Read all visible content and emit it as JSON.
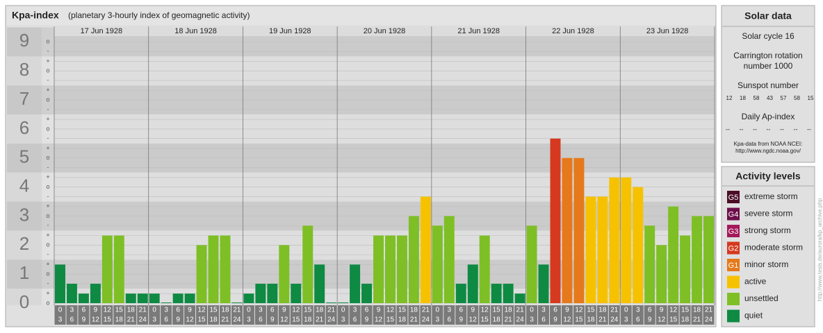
{
  "chart_data": {
    "type": "bar",
    "title": "Kpa-index",
    "subtitle": "(planetary 3-hourly index of geomagnetic activity)",
    "days": [
      "17 Jun 1928",
      "18 Jun 1928",
      "19 Jun 1928",
      "20 Jun 1928",
      "21 Jun 1928",
      "22 Jun 1928",
      "23 Jun 1928"
    ],
    "slot_starts": [
      0,
      3,
      6,
      9,
      12,
      15,
      18,
      21
    ],
    "slot_ends": [
      3,
      6,
      9,
      12,
      15,
      18,
      21,
      24
    ],
    "values": [
      1.33,
      0.67,
      0.33,
      0.67,
      2.33,
      2.33,
      0.33,
      0.33,
      0.33,
      0,
      0.33,
      0.33,
      2,
      2.33,
      2.33,
      0,
      0.33,
      0.67,
      0.67,
      2,
      0.67,
      2.67,
      1.33,
      0,
      0,
      1.33,
      0.67,
      2.33,
      2.33,
      2.33,
      3,
      3.67,
      2.67,
      3,
      0.67,
      1.33,
      2.33,
      0.67,
      0.67,
      0.33,
      2.67,
      1.33,
      5.67,
      5,
      5,
      3.67,
      3.67,
      4.33,
      4.33,
      4,
      2.67,
      2,
      3.33,
      2.33,
      3,
      3
    ],
    "colors": [
      "#0e8a43",
      "#0e8a43",
      "#0e8a43",
      "#0e8a43",
      "#7ebf26",
      "#7ebf26",
      "#0e8a43",
      "#0e8a43",
      "#0e8a43",
      "#0e8a43",
      "#0e8a43",
      "#0e8a43",
      "#7ebf26",
      "#7ebf26",
      "#7ebf26",
      "#0e8a43",
      "#0e8a43",
      "#0e8a43",
      "#0e8a43",
      "#7ebf26",
      "#0e8a43",
      "#7ebf26",
      "#0e8a43",
      "#0e8a43",
      "#0e8a43",
      "#0e8a43",
      "#0e8a43",
      "#7ebf26",
      "#7ebf26",
      "#7ebf26",
      "#7ebf26",
      "#f6c200",
      "#7ebf26",
      "#7ebf26",
      "#0e8a43",
      "#0e8a43",
      "#7ebf26",
      "#0e8a43",
      "#0e8a43",
      "#0e8a43",
      "#7ebf26",
      "#0e8a43",
      "#d5391f",
      "#e5791b",
      "#e5791b",
      "#f6c200",
      "#f6c200",
      "#f6c200",
      "#f6c200",
      "#f6c200",
      "#7ebf26",
      "#7ebf26",
      "#7ebf26",
      "#7ebf26",
      "#7ebf26",
      "#7ebf26"
    ],
    "ylim": [
      0,
      9.2
    ],
    "yticks": [
      0,
      1,
      2,
      3,
      4,
      5,
      6,
      7,
      8,
      9
    ],
    "minor_yticks": [
      {
        "value": 0,
        "label": "o"
      },
      {
        "value": 0.33,
        "label": "+"
      },
      {
        "value": 0.67,
        "label": "-"
      },
      {
        "value": 1,
        "label": "o"
      },
      {
        "value": 1.33,
        "label": "+"
      },
      {
        "value": 1.67,
        "label": "-"
      },
      {
        "value": 2,
        "label": "o"
      },
      {
        "value": 2.33,
        "label": "+"
      },
      {
        "value": 2.67,
        "label": "-"
      },
      {
        "value": 3,
        "label": "o"
      },
      {
        "value": 3.33,
        "label": "+"
      },
      {
        "value": 3.67,
        "label": "-"
      },
      {
        "value": 4,
        "label": "o"
      },
      {
        "value": 4.33,
        "label": "+"
      },
      {
        "value": 4.67,
        "label": "-"
      },
      {
        "value": 5,
        "label": "o"
      },
      {
        "value": 5.33,
        "label": "+"
      },
      {
        "value": 5.67,
        "label": "-"
      },
      {
        "value": 6,
        "label": "o"
      },
      {
        "value": 6.33,
        "label": "+"
      },
      {
        "value": 6.67,
        "label": "-"
      },
      {
        "value": 7,
        "label": "o"
      },
      {
        "value": 7.33,
        "label": "+"
      },
      {
        "value": 7.67,
        "label": "-"
      },
      {
        "value": 8,
        "label": "o"
      },
      {
        "value": 8.33,
        "label": "+"
      },
      {
        "value": 8.67,
        "label": "-"
      },
      {
        "value": 9,
        "label": "o"
      }
    ],
    "grid": true
  },
  "solar_data": {
    "title": "Solar data",
    "solar_cycle": "Solar cycle 16",
    "carrington": [
      "Carrington rotation",
      "number 1000"
    ],
    "sunspot_title": "Sunspot number",
    "sunspot_numbers": [
      12,
      18,
      58,
      43,
      57,
      58,
      15
    ],
    "ap_title": "Daily Ap-index",
    "ap_values": [
      "--",
      "--",
      "--",
      "--",
      "--",
      "--",
      "--"
    ],
    "source": "Kpa-data from NOAA NCEI:",
    "source_url": "http://www.ngdc.noaa.gov/"
  },
  "activity_levels": {
    "title": "Activity levels",
    "items": [
      {
        "code": "G5",
        "name": "extreme storm",
        "color": "#4b0c25"
      },
      {
        "code": "G4",
        "name": "severe storm",
        "color": "#6d0e4a"
      },
      {
        "code": "G3",
        "name": "strong storm",
        "color": "#a3195b"
      },
      {
        "code": "G2",
        "name": "moderate storm",
        "color": "#d5391f"
      },
      {
        "code": "G1",
        "name": "minor storm",
        "color": "#e5791b"
      },
      {
        "name": "active",
        "color": "#f6c200"
      },
      {
        "name": "unsettled",
        "color": "#7ebf26"
      },
      {
        "name": "quiet",
        "color": "#0e8a43"
      }
    ]
  },
  "watermark": "http://www.tesis.de/aurora/kp_archive.php"
}
